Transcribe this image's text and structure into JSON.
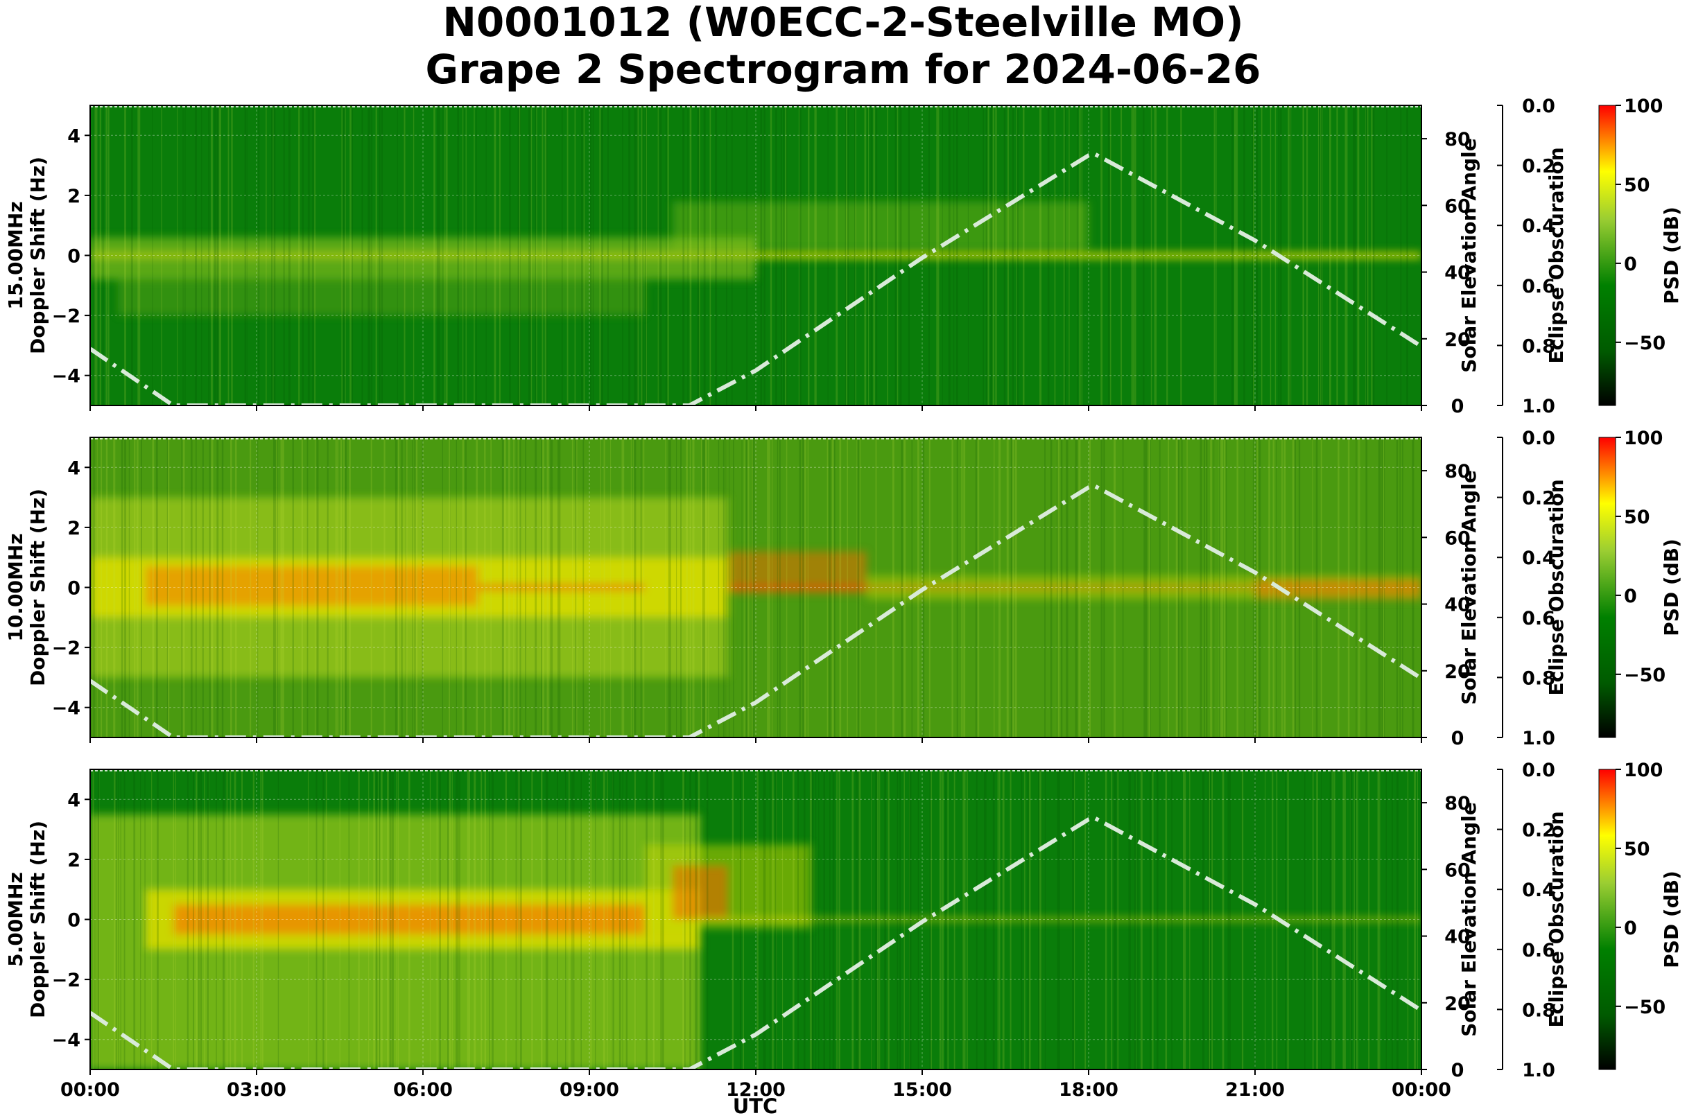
{
  "chart_data": {
    "type": "heatmap",
    "title_line1": "N0001012 (W0ECC-2-Steelville MO)",
    "title_line2": "Grape 2 Spectrogram for 2024-06-26",
    "xlabel": "UTC",
    "x_ticks": [
      "00:00",
      "03:00",
      "06:00",
      "09:00",
      "12:00",
      "15:00",
      "18:00",
      "21:00",
      "00:00"
    ],
    "x_range_hours": [
      0,
      24
    ],
    "y_ticks": [
      4,
      2,
      0,
      -2,
      -4
    ],
    "ylim": [
      -5,
      5
    ],
    "ylabel": "Doppler Shift (Hz)",
    "elevation_axis": {
      "label": "Solar Elevation Angle",
      "ticks": [
        80,
        60,
        40,
        20,
        0
      ],
      "range": [
        0,
        90
      ]
    },
    "eclipse_axis": {
      "label": "Eclipse Obscuration",
      "ticks": [
        "0.0",
        "0.2",
        "0.4",
        "0.6",
        "0.8",
        "1.0"
      ],
      "range": [
        0,
        1
      ]
    },
    "colorbar": {
      "label": "PSD (dB)",
      "ticks": [
        100,
        50,
        0,
        -50
      ],
      "range": [
        -90,
        100
      ],
      "colors": [
        "#000000",
        "#006400",
        "#008000",
        "#9acd32",
        "#ffff00",
        "#ff0000"
      ]
    },
    "solar_elevation": {
      "hours": [
        0,
        1.5,
        10.8,
        12,
        15,
        18,
        18.1,
        21,
        24
      ],
      "degrees": [
        17,
        0,
        0,
        10.5,
        44.3,
        75,
        75.5,
        49.5,
        17.7
      ],
      "color": "#d9ead9"
    },
    "panels": [
      {
        "freq_label": "15.00MHz",
        "background": "#0a7d0a",
        "features": [
          {
            "h0": 0,
            "h1": 12,
            "y0": -0.8,
            "y1": 0.6,
            "color": "#9ccc20",
            "op": 0.55
          },
          {
            "h0": 0.5,
            "h1": 10,
            "y0": -2,
            "y1": -0.8,
            "color": "#7fb81a",
            "op": 0.35
          },
          {
            "h0": 12,
            "h1": 24,
            "y0": -0.1,
            "y1": 0.1,
            "color": "#e8e000",
            "op": 0.85
          },
          {
            "h0": 10.5,
            "h1": 18,
            "y0": 0.2,
            "y1": 1.8,
            "color": "#86c21c",
            "op": 0.4
          },
          {
            "h0": 0,
            "h1": 12,
            "y0": -0.1,
            "y1": 0.1,
            "color": "#d8d800",
            "op": 0.6
          }
        ]
      },
      {
        "freq_label": "10.00MHz",
        "background": "#4a9a10",
        "features": [
          {
            "h0": 0,
            "h1": 11.5,
            "y0": -3,
            "y1": 3,
            "color": "#b3d41c",
            "op": 0.6
          },
          {
            "h0": 0,
            "h1": 11.5,
            "y0": -1,
            "y1": 1,
            "color": "#e6e000",
            "op": 0.75
          },
          {
            "h0": 1,
            "h1": 7,
            "y0": -0.6,
            "y1": 0.7,
            "color": "#f08a00",
            "op": 0.7
          },
          {
            "h0": 7,
            "h1": 10,
            "y0": -0.1,
            "y1": 0.1,
            "color": "#f06000",
            "op": 0.7
          },
          {
            "h0": 11.5,
            "h1": 14,
            "y0": -0.2,
            "y1": 1.2,
            "color": "#e87000",
            "op": 0.55
          },
          {
            "h0": 11.5,
            "h1": 24,
            "y0": -0.05,
            "y1": 0.05,
            "color": "#ff3000",
            "op": 0.9
          },
          {
            "h0": 14,
            "h1": 24,
            "y0": -0.4,
            "y1": 0.4,
            "color": "#c8d400",
            "op": 0.45
          },
          {
            "h0": 21,
            "h1": 24,
            "y0": -0.4,
            "y1": 0.3,
            "color": "#f07000",
            "op": 0.45
          }
        ]
      },
      {
        "freq_label": "5.00MHz",
        "background": "#0a7d0a",
        "features": [
          {
            "h0": 0,
            "h1": 11,
            "y0": -5,
            "y1": 3.5,
            "color": "#b8d820",
            "op": 0.6
          },
          {
            "h0": 1,
            "h1": 11,
            "y0": -1,
            "y1": 1,
            "color": "#e8e000",
            "op": 0.75
          },
          {
            "h0": 1.5,
            "h1": 10,
            "y0": -0.5,
            "y1": 0.5,
            "color": "#f08000",
            "op": 0.75
          },
          {
            "h0": 10,
            "h1": 13,
            "y0": -0.3,
            "y1": 2.5,
            "color": "#c8d800",
            "op": 0.5
          },
          {
            "h0": 10.5,
            "h1": 11.5,
            "y0": 0,
            "y1": 1.8,
            "color": "#f06000",
            "op": 0.55
          },
          {
            "h0": 11,
            "h1": 24,
            "y0": -0.05,
            "y1": 0.05,
            "color": "#e8e000",
            "op": 0.8
          }
        ]
      }
    ]
  }
}
